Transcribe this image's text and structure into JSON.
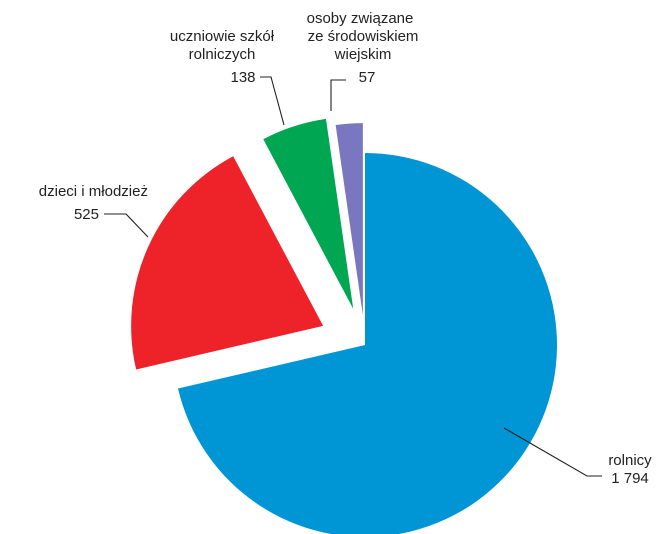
{
  "chart_data": {
    "type": "pie",
    "exploded": true,
    "slices": [
      {
        "label": "rolnicy",
        "value": 1794,
        "value_text": "1 794",
        "color": "#0096d6"
      },
      {
        "label": "dzieci i młodzież",
        "value": 525,
        "value_text": "525",
        "color": "#ee2229"
      },
      {
        "label": "uczniowie szkół rolniczych",
        "value": 138,
        "value_text": "138",
        "color": "#00a651"
      },
      {
        "label": "osoby związane ze środowiskiem wiejskim",
        "value": 57,
        "value_text": "57",
        "color": "#7b76c0"
      }
    ]
  },
  "labels": {
    "rolnicy": {
      "line1": "rolnicy",
      "value": "1 794"
    },
    "dzieci": {
      "line1": "dzieci i młodzież",
      "value": "525"
    },
    "uczniowie": {
      "line1": "uczniowie szkół",
      "line2": "rolniczych",
      "value": "138"
    },
    "osoby": {
      "line1": "osoby związane",
      "line2": "ze środowiskiem",
      "line3": "wiejskim",
      "value": "57"
    }
  }
}
